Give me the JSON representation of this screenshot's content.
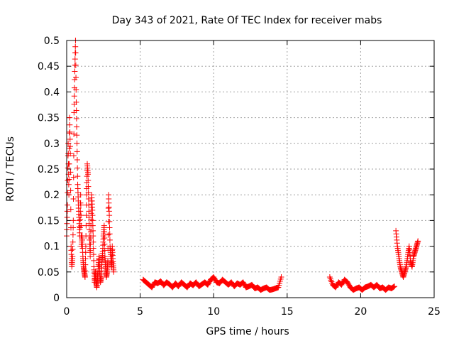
{
  "chart_data": {
    "type": "scatter",
    "title": "Day 343 of 2021, Rate Of TEC Index for receiver mabs",
    "xlabel": "GPS time / hours",
    "ylabel": "ROTI / TECUs",
    "xlim": [
      0,
      25
    ],
    "ylim": [
      0,
      0.5
    ],
    "xticks": [
      "0",
      "5",
      "10",
      "15",
      "20",
      "25"
    ],
    "yticks": [
      "0",
      "0.05",
      "0.1",
      "0.15",
      "0.2",
      "0.25",
      "0.3",
      "0.35",
      "0.4",
      "0.45",
      "0.5"
    ],
    "grid": true,
    "marker": "plus",
    "color": "#ff0000",
    "series": [
      {
        "segments": [
          {
            "x": [
              0.0,
              0.05,
              0.1,
              0.15,
              0.2,
              0.25,
              0.3,
              0.35,
              0.4,
              0.45,
              0.5,
              0.55,
              0.6,
              0.65,
              0.7,
              0.75,
              0.8,
              0.85,
              0.9,
              0.95,
              1.0,
              1.05,
              1.1,
              1.15,
              1.2,
              1.25,
              1.3,
              1.35,
              1.4,
              1.45,
              1.5,
              1.55,
              1.6,
              1.65,
              1.7,
              1.75,
              1.8,
              1.85,
              1.9,
              1.95,
              2.0,
              2.05,
              2.1,
              2.15,
              2.2,
              2.25,
              2.3,
              2.35,
              2.4,
              2.45,
              2.5,
              2.55,
              2.6,
              2.65,
              2.7,
              2.75,
              2.8,
              2.85,
              2.9,
              2.95,
              3.0,
              3.05,
              3.1,
              3.15,
              3.2
            ],
            "y": [
              0.12,
              0.18,
              0.3,
              0.2,
              0.35,
              0.28,
              0.1,
              0.06,
              0.08,
              0.15,
              0.36,
              0.44,
              0.5,
              0.38,
              0.3,
              0.22,
              0.18,
              0.15,
              0.12,
              0.2,
              0.1,
              0.12,
              0.08,
              0.06,
              0.05,
              0.04,
              0.1,
              0.2,
              0.26,
              0.24,
              0.18,
              0.12,
              0.08,
              0.14,
              0.2,
              0.17,
              0.12,
              0.06,
              0.03,
              0.05,
              0.03,
              0.02,
              0.04,
              0.06,
              0.08,
              0.05,
              0.03,
              0.04,
              0.07,
              0.09,
              0.12,
              0.14,
              0.08,
              0.06,
              0.04,
              0.05,
              0.07,
              0.2,
              0.16,
              0.1,
              0.08,
              0.06,
              0.1,
              0.07,
              0.05
            ]
          },
          {
            "x": [
              5.2,
              5.4,
              5.6,
              5.8,
              6.0,
              6.2,
              6.4,
              6.6,
              6.8,
              7.0,
              7.2,
              7.4,
              7.6,
              7.8,
              8.0,
              8.2,
              8.4,
              8.6,
              8.8,
              9.0,
              9.2,
              9.4,
              9.6,
              9.8,
              10.0,
              10.2,
              10.4,
              10.6,
              10.8,
              11.0,
              11.2,
              11.4,
              11.6,
              11.8,
              12.0,
              12.2,
              12.4,
              12.6,
              12.8,
              13.0,
              13.2,
              13.4,
              13.6,
              13.8,
              14.0,
              14.2,
              14.4,
              14.6
            ],
            "y": [
              0.035,
              0.03,
              0.025,
              0.02,
              0.03,
              0.028,
              0.032,
              0.024,
              0.03,
              0.026,
              0.02,
              0.028,
              0.022,
              0.03,
              0.025,
              0.02,
              0.028,
              0.024,
              0.03,
              0.022,
              0.026,
              0.03,
              0.025,
              0.035,
              0.04,
              0.03,
              0.028,
              0.035,
              0.03,
              0.025,
              0.03,
              0.022,
              0.028,
              0.025,
              0.03,
              0.02,
              0.022,
              0.025,
              0.018,
              0.02,
              0.015,
              0.018,
              0.02,
              0.015,
              0.016,
              0.018,
              0.02,
              0.04
            ]
          },
          {
            "x": [
              17.9,
              18.1,
              18.3,
              18.5,
              18.7,
              18.9,
              19.1,
              19.3,
              19.5,
              19.7,
              19.9,
              20.1,
              20.3,
              20.5,
              20.7,
              20.9,
              21.1,
              21.3,
              21.5,
              21.7,
              21.9,
              22.1,
              22.3
            ],
            "y": [
              0.04,
              0.025,
              0.02,
              0.03,
              0.025,
              0.035,
              0.03,
              0.02,
              0.015,
              0.018,
              0.02,
              0.015,
              0.02,
              0.022,
              0.025,
              0.02,
              0.025,
              0.018,
              0.02,
              0.015,
              0.02,
              0.018,
              0.022
            ]
          },
          {
            "x": [
              22.4,
              22.5,
              22.6,
              22.7,
              22.8,
              22.9,
              23.0,
              23.1,
              23.2,
              23.3,
              23.4,
              23.5,
              23.6,
              23.7,
              23.8,
              23.9
            ],
            "y": [
              0.13,
              0.1,
              0.08,
              0.06,
              0.05,
              0.04,
              0.05,
              0.06,
              0.08,
              0.1,
              0.07,
              0.06,
              0.08,
              0.09,
              0.1,
              0.11
            ]
          }
        ]
      }
    ]
  }
}
